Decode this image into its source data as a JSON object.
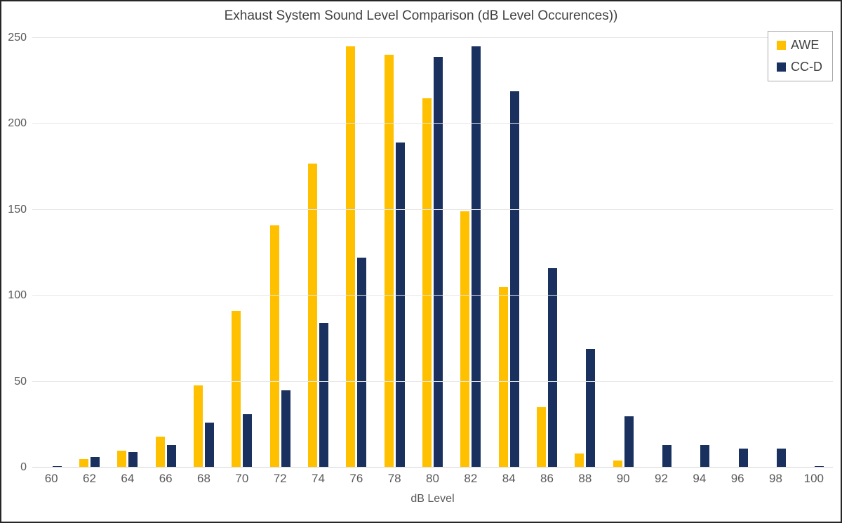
{
  "chart_data": {
    "type": "bar",
    "title": "Exhaust System Sound Level Comparison (dB Level Occurences))",
    "xlabel": "dB Level",
    "ylabel": "",
    "categories": [
      60,
      62,
      64,
      66,
      68,
      70,
      72,
      74,
      76,
      78,
      80,
      82,
      84,
      86,
      88,
      90,
      92,
      94,
      96,
      98,
      100
    ],
    "series": [
      {
        "name": "AWE",
        "color": "#FFC000",
        "values": [
          0,
          5,
          10,
          18,
          48,
          91,
          141,
          177,
          245,
          240,
          215,
          149,
          105,
          35,
          8,
          4,
          0,
          0,
          0,
          0,
          0
        ]
      },
      {
        "name": "CC-D",
        "color": "#1A315F",
        "values": [
          1,
          6,
          9,
          13,
          26,
          31,
          45,
          84,
          122,
          189,
          239,
          245,
          219,
          116,
          69,
          30,
          13,
          13,
          11,
          11,
          1
        ]
      }
    ],
    "ylim": [
      0,
      250
    ],
    "yticks": [
      0,
      50,
      100,
      150,
      200,
      250
    ],
    "grid": "horizontal-only",
    "legend_position": "top-right",
    "colors": {
      "grid": "#e7e7e7",
      "axis_line": "#d6d6d6",
      "tick_text": "#595959",
      "title_text": "#3f3f3f"
    }
  }
}
